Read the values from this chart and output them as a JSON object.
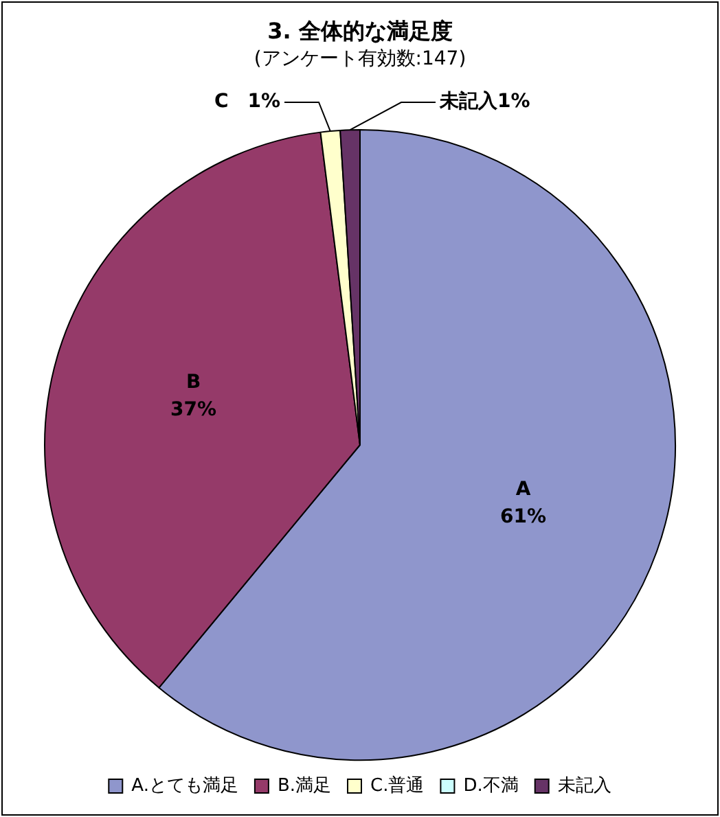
{
  "chart_data": {
    "type": "pie",
    "title": "3. 全体的な満足度",
    "subtitle": "(アンケート有効数:147)",
    "categories": [
      "A.とても満足",
      "B.満足",
      "C.普通",
      "D.不満",
      "未記入"
    ],
    "values": [
      61,
      37,
      1,
      0,
      1
    ],
    "colors": [
      "#8f96cc",
      "#953a69",
      "#ffffcc",
      "#ccffff",
      "#663366"
    ],
    "value_labels": [
      "A\n61%",
      "B\n37%",
      "C　1%",
      null,
      "未記入1%"
    ],
    "legend": "bottom"
  }
}
